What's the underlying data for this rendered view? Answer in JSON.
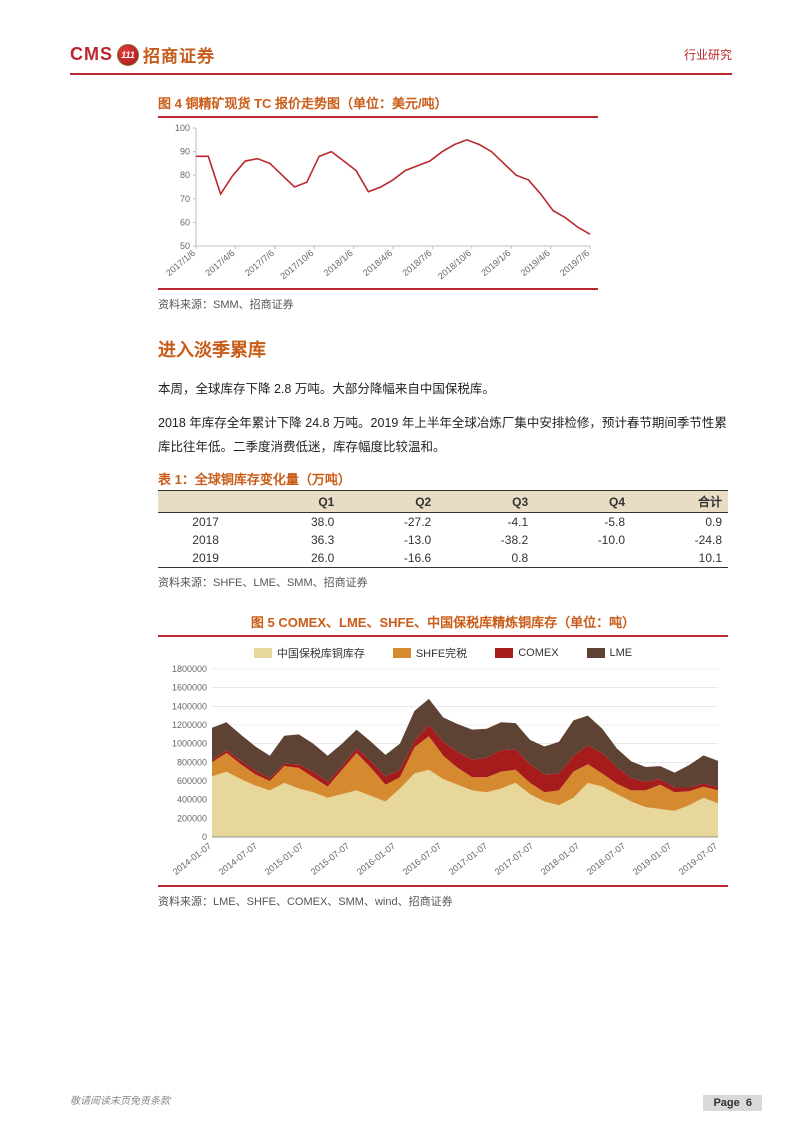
{
  "header": {
    "logo_en": "CMS",
    "logo_badge": "111",
    "logo_cn": "招商证券",
    "right": "行业研究"
  },
  "fig4": {
    "title_prefix": "图 4 ",
    "title": "铜精矿现货 TC 报价走势图（单位：美元/吨）",
    "source": "资料来源：SMM、招商证券",
    "type": "line",
    "ylim": [
      50,
      100
    ],
    "yticks": [
      50,
      60,
      70,
      80,
      90,
      100
    ],
    "xlabels": [
      "2017/1/6",
      "2017/4/6",
      "2017/7/6",
      "2017/10/6",
      "2018/1/6",
      "2018/4/6",
      "2018/7/6",
      "2018/10/6",
      "2019/1/6",
      "2019/4/6",
      "2019/7/6"
    ],
    "line_color": "#b8282e",
    "axis_color": "#bfbfbf",
    "tick_fontsize": 9,
    "values": [
      88,
      88,
      72,
      80,
      86,
      87,
      85,
      80,
      75,
      77,
      88,
      90,
      86,
      82,
      73,
      75,
      78,
      82,
      84,
      86,
      90,
      93,
      95,
      93,
      90,
      85,
      80,
      78,
      72,
      65,
      62,
      58,
      55
    ]
  },
  "section": {
    "title": "进入淡季累库",
    "para1": "本周，全球库存下降 2.8 万吨。大部分降幅来自中国保税库。",
    "para2": "2018 年库存全年累计下降 24.8 万吨。2019 年上半年全球冶炼厂集中安排检修，预计春节期间季节性累库比往年低。二季度消费低迷，库存幅度比较温和。"
  },
  "table1": {
    "title_prefix": "表 1：",
    "title": "全球铜库存变化量（万吨）",
    "columns": [
      "",
      "Q1",
      "Q2",
      "Q3",
      "Q4",
      "合计"
    ],
    "rows": [
      [
        "2017",
        "38.0",
        "-27.2",
        "-4.1",
        "-5.8",
        "0.9"
      ],
      [
        "2018",
        "36.3",
        "-13.0",
        "-38.2",
        "-10.0",
        "-24.8"
      ],
      [
        "2019",
        "26.0",
        "-16.6",
        "0.8",
        "",
        "10.1"
      ]
    ],
    "header_bg": "#e9dcc5",
    "source": "资料来源：SHFE、LME、SMM、招商证券"
  },
  "fig5": {
    "title_prefix": "图 5  ",
    "title": "COMEX、LME、SHFE、中国保税库精炼铜库存（单位：吨）",
    "type": "stacked-area",
    "legend": [
      {
        "label": "中国保税库铜库存",
        "color": "#e7d79b"
      },
      {
        "label": "SHFE完税",
        "color": "#d68a2f"
      },
      {
        "label": "COMEX",
        "color": "#a61c1c"
      },
      {
        "label": "LME",
        "color": "#5e4234"
      }
    ],
    "ylim": [
      0,
      1800000
    ],
    "yticks": [
      0,
      200000,
      400000,
      600000,
      800000,
      1000000,
      1200000,
      1400000,
      1600000,
      1800000
    ],
    "xlabels": [
      "2014-01-07",
      "2014-07-07",
      "2015-01-07",
      "2015-07-07",
      "2016-01-07",
      "2016-07-07",
      "2017-01-07",
      "2017-07-07",
      "2018-01-07",
      "2018-07-07",
      "2019-01-07",
      "2019-07-07"
    ],
    "grid_color": "#d9d9d9",
    "tick_fontsize": 9,
    "series": {
      "bonded": [
        650000,
        700000,
        620000,
        550000,
        500000,
        580000,
        520000,
        480000,
        420000,
        460000,
        500000,
        440000,
        380000,
        520000,
        680000,
        720000,
        620000,
        560000,
        500000,
        480000,
        520000,
        580000,
        460000,
        380000,
        340000,
        420000,
        580000,
        540000,
        460000,
        380000,
        320000,
        300000,
        280000,
        340000,
        420000,
        360000
      ],
      "shfe": [
        150000,
        200000,
        160000,
        120000,
        100000,
        180000,
        220000,
        160000,
        120000,
        260000,
        400000,
        300000,
        180000,
        120000,
        280000,
        360000,
        250000,
        180000,
        140000,
        160000,
        180000,
        140000,
        120000,
        100000,
        160000,
        280000,
        200000,
        140000,
        110000,
        120000,
        180000,
        260000,
        200000,
        150000,
        120000,
        140000
      ],
      "comex": [
        20000,
        30000,
        35000,
        40000,
        30000,
        25000,
        40000,
        60000,
        50000,
        40000,
        50000,
        70000,
        90000,
        80000,
        70000,
        120000,
        150000,
        170000,
        190000,
        210000,
        230000,
        220000,
        200000,
        190000,
        180000,
        170000,
        200000,
        220000,
        180000,
        130000,
        90000,
        60000,
        50000,
        40000,
        35000,
        35000
      ],
      "lme": [
        350000,
        300000,
        280000,
        260000,
        240000,
        300000,
        320000,
        300000,
        280000,
        240000,
        200000,
        210000,
        230000,
        280000,
        320000,
        280000,
        260000,
        300000,
        320000,
        310000,
        300000,
        280000,
        260000,
        300000,
        340000,
        380000,
        320000,
        260000,
        200000,
        180000,
        160000,
        140000,
        160000,
        240000,
        300000,
        280000
      ]
    },
    "source": "资料来源：LME、SHFE、COMEX、SMM、wind、招商证券"
  },
  "footer": {
    "left": "敬请阅读末页免责条款",
    "page_label": "Page",
    "page_num": "6"
  }
}
